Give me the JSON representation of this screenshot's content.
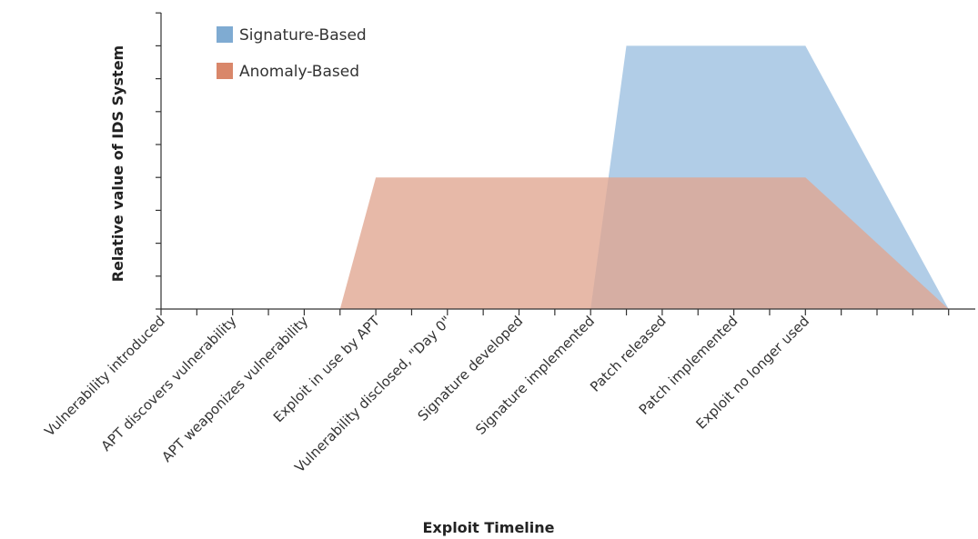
{
  "chart_data": {
    "type": "area",
    "title": "",
    "xlabel": "Exploit Timeline",
    "ylabel": "Relative value of IDS System",
    "legend_position": "top-left",
    "grid": false,
    "x_tick_labels": [
      "Vulnerability introduced",
      "APT discovers vulnerability",
      "APT weaponizes vulnerability",
      "Exploit in use by APT",
      "Vulnerability disclosed, \"Day 0\"",
      "Signature developed",
      "Signature implemented",
      "Patch released",
      "Patch implemented",
      "Exploit no longer used"
    ],
    "x_label_positions": [
      0,
      2,
      4,
      6,
      8,
      10,
      12,
      14,
      16,
      18
    ],
    "xlim": [
      0,
      22
    ],
    "ylim": [
      0,
      9
    ],
    "y_tick_values": [
      0,
      1,
      2,
      3,
      4,
      5,
      6,
      7,
      8,
      9
    ],
    "series": [
      {
        "name": "Signature-Based",
        "color": "#7fabd2",
        "fill_color": "#a9c8e4",
        "points": [
          [
            12,
            0
          ],
          [
            13,
            8
          ],
          [
            18,
            8
          ],
          [
            22,
            0
          ]
        ]
      },
      {
        "name": "Anomaly-Based",
        "color": "#d9876a",
        "fill_color": "#e0a58f",
        "points": [
          [
            5,
            0
          ],
          [
            6,
            4
          ],
          [
            18,
            4
          ],
          [
            22,
            0
          ]
        ]
      }
    ]
  }
}
